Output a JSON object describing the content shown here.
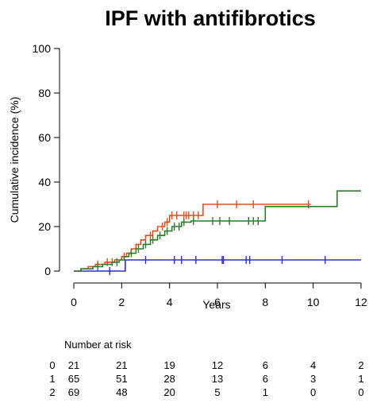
{
  "chart_data": {
    "type": "line",
    "title": "IPF with antifibrotics",
    "xlabel": "Years",
    "ylabel": "Cumulative incidence (%)",
    "xlim": [
      0,
      12
    ],
    "ylim": [
      0,
      100
    ],
    "x_ticks": [
      0,
      2,
      4,
      6,
      8,
      10,
      12
    ],
    "y_ticks": [
      0,
      20,
      40,
      60,
      80,
      100
    ],
    "grid": false,
    "series": [
      {
        "group": "0",
        "color": "#2b2bd8",
        "steps": [
          [
            0,
            0
          ],
          [
            2.15,
            0
          ],
          [
            2.15,
            5
          ],
          [
            12,
            5
          ]
        ],
        "censor_x": [
          1.5,
          3.0,
          4.2,
          4.5,
          5.1,
          6.2,
          6.25,
          7.2,
          7.35,
          8.7,
          10.5
        ]
      },
      {
        "group": "1",
        "color": "#e84e1b",
        "steps": [
          [
            0,
            0
          ],
          [
            0.3,
            0
          ],
          [
            0.3,
            1
          ],
          [
            0.6,
            1
          ],
          [
            0.6,
            2
          ],
          [
            0.9,
            2
          ],
          [
            0.9,
            3
          ],
          [
            1.3,
            3
          ],
          [
            1.3,
            4
          ],
          [
            1.7,
            4
          ],
          [
            1.7,
            5
          ],
          [
            2.0,
            5
          ],
          [
            2.0,
            6.5
          ],
          [
            2.2,
            6.5
          ],
          [
            2.2,
            8
          ],
          [
            2.4,
            8
          ],
          [
            2.4,
            10
          ],
          [
            2.6,
            10
          ],
          [
            2.6,
            12
          ],
          [
            2.8,
            12
          ],
          [
            2.8,
            14
          ],
          [
            3.0,
            14
          ],
          [
            3.0,
            16
          ],
          [
            3.3,
            16
          ],
          [
            3.3,
            18
          ],
          [
            3.5,
            18
          ],
          [
            3.5,
            20
          ],
          [
            3.8,
            20
          ],
          [
            3.8,
            22
          ],
          [
            4.0,
            22
          ],
          [
            4.0,
            25
          ],
          [
            5.4,
            25
          ],
          [
            5.4,
            30
          ],
          [
            9.9,
            30
          ]
        ],
        "censor_x": [
          1.0,
          1.4,
          1.6,
          2.1,
          3.2,
          3.7,
          3.9,
          4.1,
          4.3,
          4.6,
          4.7,
          4.8,
          5.0,
          5.2,
          6.0,
          6.8,
          7.5,
          9.8
        ]
      },
      {
        "group": "2",
        "color": "#2d7d2d",
        "steps": [
          [
            0,
            0
          ],
          [
            0.3,
            0
          ],
          [
            0.3,
            1
          ],
          [
            0.8,
            1
          ],
          [
            0.8,
            2
          ],
          [
            1.2,
            2
          ],
          [
            1.2,
            3
          ],
          [
            1.6,
            3
          ],
          [
            1.6,
            4
          ],
          [
            1.9,
            4
          ],
          [
            1.9,
            5
          ],
          [
            2.1,
            5
          ],
          [
            2.1,
            6.5
          ],
          [
            2.3,
            6.5
          ],
          [
            2.3,
            8
          ],
          [
            2.6,
            8
          ],
          [
            2.6,
            10
          ],
          [
            2.9,
            10
          ],
          [
            2.9,
            12
          ],
          [
            3.2,
            12
          ],
          [
            3.2,
            14
          ],
          [
            3.5,
            14
          ],
          [
            3.5,
            16
          ],
          [
            3.8,
            16
          ],
          [
            3.8,
            18
          ],
          [
            4.1,
            18
          ],
          [
            4.1,
            20
          ],
          [
            4.5,
            20
          ],
          [
            4.5,
            22
          ],
          [
            4.9,
            22
          ],
          [
            4.9,
            22.5
          ],
          [
            8.0,
            22.5
          ],
          [
            8.0,
            29
          ],
          [
            11.0,
            29
          ],
          [
            11.0,
            36
          ],
          [
            12,
            36
          ]
        ],
        "censor_x": [
          1.0,
          1.8,
          2.4,
          2.7,
          3.0,
          3.3,
          3.6,
          3.9,
          4.2,
          4.4,
          4.6,
          5.0,
          5.8,
          6.1,
          6.5,
          7.3,
          7.5,
          7.7
        ]
      }
    ],
    "risk_table": {
      "title": "Number at risk",
      "times": [
        0,
        2,
        4,
        6,
        8,
        10,
        12
      ],
      "rows": [
        {
          "group": "0",
          "counts": [
            "21",
            "21",
            "19",
            "12",
            "6",
            "4",
            "2"
          ]
        },
        {
          "group": "1",
          "counts": [
            "65",
            "51",
            "28",
            "13",
            "6",
            "3",
            "1"
          ]
        },
        {
          "group": "2",
          "counts": [
            "69",
            "48",
            "20",
            "5",
            "1",
            "0",
            "0"
          ]
        }
      ]
    }
  }
}
